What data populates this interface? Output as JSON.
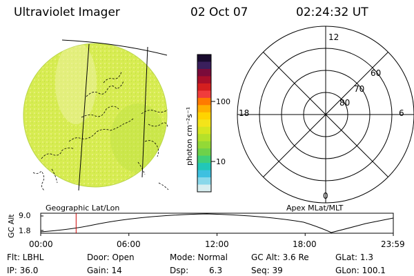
{
  "header": {
    "instrument": "Ultraviolet Imager",
    "date": "02 Oct 07",
    "time": "02:24:32 UT"
  },
  "colorbar": {
    "label": "photon cm⁻²s⁻¹",
    "ticks": [
      "100",
      "10"
    ],
    "colors": [
      "#1a0b2e",
      "#3a1f5c",
      "#7a0b3a",
      "#a80f2a",
      "#d41f1f",
      "#f03c3c",
      "#ff7a00",
      "#ffb000",
      "#ffd400",
      "#f4e41a",
      "#d6e620",
      "#b5e12a",
      "#93d936",
      "#6ed14a",
      "#3fcf7a",
      "#21c7b8",
      "#3ec0e0",
      "#8ad8ea",
      "#d8eef0"
    ]
  },
  "image_panel": {
    "label": "Geographic Lat/Lon",
    "disk_color": "#d7ec52"
  },
  "polar_panel": {
    "label": "Apex MLat/MLT",
    "mlt_labels": {
      "top": "12",
      "bottom": "0",
      "left": "18",
      "right": "6"
    },
    "ring_labels": [
      "60",
      "70",
      "80"
    ]
  },
  "altitude_plot": {
    "ylabel": "GC Alt",
    "yticks": [
      "9.0",
      "1.8"
    ],
    "xticks": [
      "00:00",
      "06:00",
      "12:00",
      "18:00",
      "23:59"
    ],
    "marker_color": "#cc0000",
    "marker_time_hours": 2.41
  },
  "status": {
    "filter": "Flt: LBHL",
    "door": "Door: Open",
    "mode": "Mode: Normal",
    "gc_alt": "GC Alt: 3.6 Re",
    "glat": "GLat:  1.3",
    "ip": "IP: 36.0",
    "gain": "Gain: 14",
    "dsp_label": "Dsp:",
    "dsp_value": "6.3",
    "seq": "Seq: 39",
    "glon": "GLon: 100.1"
  }
}
